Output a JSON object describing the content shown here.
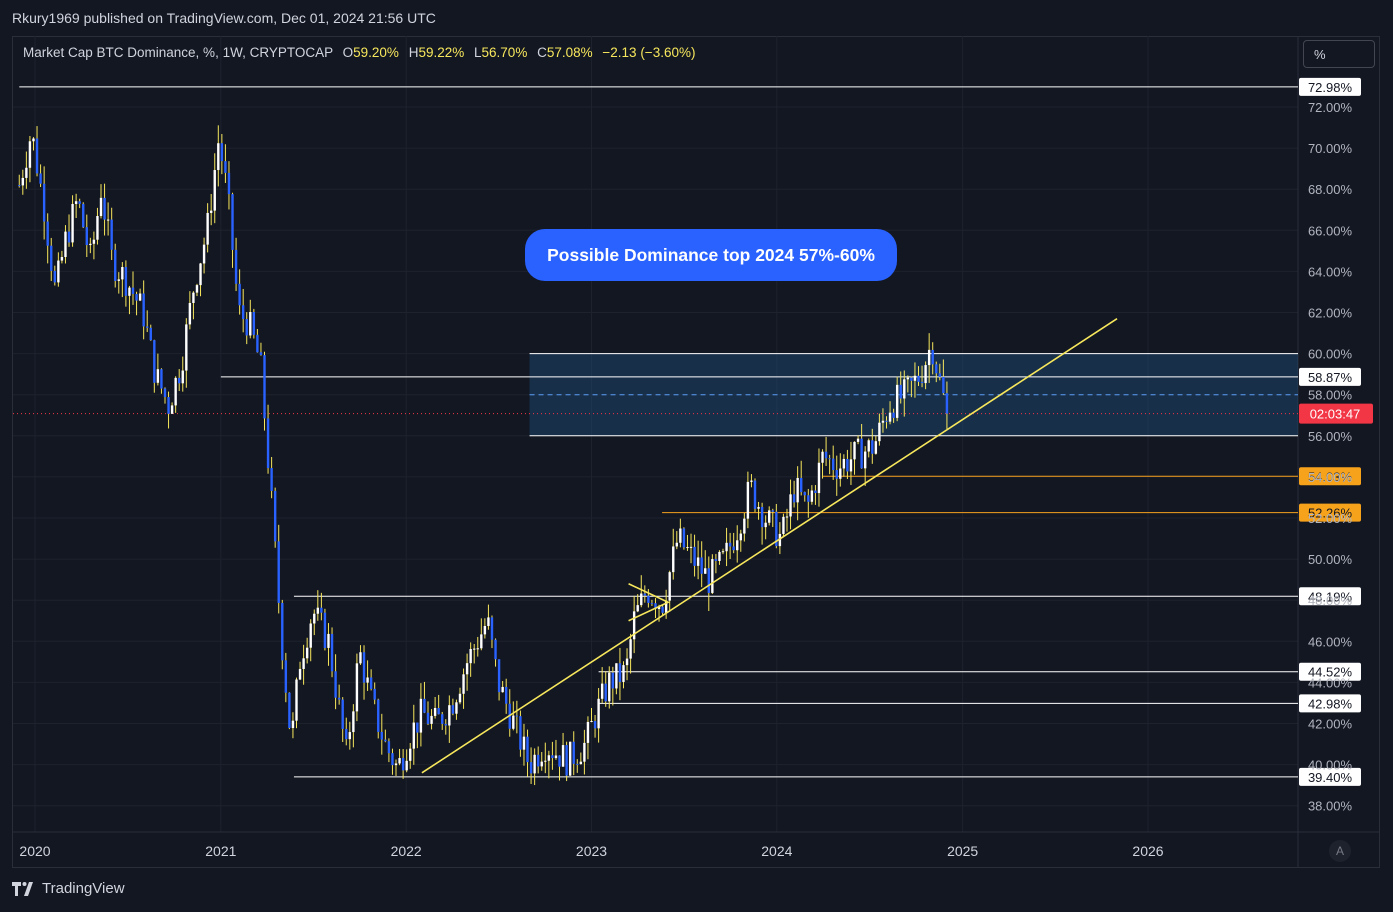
{
  "header": {
    "publisher": "Rkury1969 published on TradingView.com, Dec 01, 2024 21:56 UTC"
  },
  "legend": {
    "symbol": "Market Cap BTC Dominance, %, 1W, CRYPTOCAP",
    "o_label": "O",
    "o": "59.20%",
    "h_label": "H",
    "h": "59.22%",
    "l_label": "L",
    "l": "56.70%",
    "c_label": "C",
    "c": "57.08%",
    "change": "−2.13 (−3.60%)"
  },
  "scale_button": "%",
  "auto_button": "A",
  "brand": "TradingView",
  "annotation": "Possible Dominance top 2024 57%-60%",
  "countdown": "02:03:47",
  "colors": {
    "background": "#131722",
    "up": "#ffffff",
    "down": "#2962ff",
    "wick": "#f7e75c",
    "trendline": "#f7e75c",
    "zone": "#1f4e79",
    "annotation_bg": "#2962ff",
    "orange": "#f7a21b",
    "countdown_bg": "#f23645"
  },
  "chart_data": {
    "type": "candlestick",
    "title": "Market Cap BTC Dominance, %, 1W, CRYPTOCAP",
    "ylabel": "%",
    "ylim": [
      37.0,
      74.0
    ],
    "x_range": [
      "2019-12-01",
      "2026-12-31"
    ],
    "x_ticks": [
      "2020",
      "2021",
      "2022",
      "2023",
      "2024",
      "2025",
      "2026"
    ],
    "y_ticks": [
      "38.00%",
      "40.00%",
      "42.00%",
      "44.00%",
      "46.00%",
      "48.00%",
      "50.00%",
      "52.00%",
      "54.00%",
      "56.00%",
      "58.00%",
      "60.00%",
      "62.00%",
      "64.00%",
      "66.00%",
      "68.00%",
      "70.00%",
      "72.00%"
    ],
    "horizontal_levels": [
      {
        "value": 72.98,
        "label": "72.98%",
        "color": "#ffffff",
        "from": "2019-12-01"
      },
      {
        "value": 58.87,
        "label": "58.87%",
        "color": "#ffffff",
        "from": "2021-01-01"
      },
      {
        "value": 54.03,
        "label": "54.03%",
        "color": "#f7a21b",
        "from": "2024-04-01"
      },
      {
        "value": 52.26,
        "label": "52.26%",
        "color": "#f7a21b",
        "from": "2023-05-20"
      },
      {
        "value": 48.19,
        "label": "48.19%",
        "color": "#ffffff",
        "from": "2021-05-25"
      },
      {
        "value": 44.52,
        "label": "44.52%",
        "color": "#ffffff",
        "from": "2023-01-15"
      },
      {
        "value": 42.98,
        "label": "42.98%",
        "color": "#ffffff",
        "from": "2023-01-15"
      },
      {
        "value": 39.4,
        "label": "39.40%",
        "color": "#ffffff",
        "from": "2021-05-25"
      }
    ],
    "zone": {
      "from": "2022-09-01",
      "to": "2026-12-31",
      "low": 56.0,
      "high": 60.0
    },
    "zone_mid": 58.0,
    "current_price": 57.08,
    "trendline": {
      "x1": "2022-02-01",
      "y1": 39.6,
      "x2": "2025-11-01",
      "y2": 61.7
    },
    "triangle": {
      "x1": "2023-03-15",
      "x2": "2023-06-01",
      "top": 48.8,
      "bottom": 47.0
    },
    "path": [
      [
        "2019-12-01",
        68.2
      ],
      [
        "2019-12-25",
        70.8
      ],
      [
        "2020-01-20",
        67.0
      ],
      [
        "2020-02-10",
        63.0
      ],
      [
        "2020-03-01",
        65.5
      ],
      [
        "2020-03-25",
        67.5
      ],
      [
        "2020-04-20",
        64.5
      ],
      [
        "2020-05-10",
        68.0
      ],
      [
        "2020-06-01",
        64.5
      ],
      [
        "2020-07-01",
        63.5
      ],
      [
        "2020-08-01",
        62.0
      ],
      [
        "2020-08-25",
        59.0
      ],
      [
        "2020-09-20",
        57.5
      ],
      [
        "2020-10-15",
        59.5
      ],
      [
        "2020-11-10",
        63.5
      ],
      [
        "2020-12-05",
        66.0
      ],
      [
        "2020-12-28",
        70.5
      ],
      [
        "2021-01-15",
        67.5
      ],
      [
        "2021-02-05",
        62.0
      ],
      [
        "2021-02-25",
        61.5
      ],
      [
        "2021-03-20",
        59.5
      ],
      [
        "2021-04-10",
        53.0
      ],
      [
        "2021-05-01",
        46.0
      ],
      [
        "2021-05-20",
        41.0
      ],
      [
        "2021-06-05",
        45.0
      ],
      [
        "2021-07-01",
        47.5
      ],
      [
        "2021-08-01",
        46.0
      ],
      [
        "2021-09-05",
        40.5
      ],
      [
        "2021-10-01",
        45.5
      ],
      [
        "2021-10-25",
        43.0
      ],
      [
        "2021-11-20",
        41.0
      ],
      [
        "2021-12-15",
        39.8
      ],
      [
        "2022-01-10",
        41.5
      ],
      [
        "2022-02-01",
        42.5
      ],
      [
        "2022-03-01",
        42.0
      ],
      [
        "2022-04-01",
        43.0
      ],
      [
        "2022-05-01",
        45.0
      ],
      [
        "2022-06-10",
        47.0
      ],
      [
        "2022-07-01",
        44.0
      ],
      [
        "2022-08-01",
        42.0
      ],
      [
        "2022-09-01",
        40.0
      ],
      [
        "2022-10-01",
        41.0
      ],
      [
        "2022-11-15",
        40.2
      ],
      [
        "2022-12-20",
        41.0
      ],
      [
        "2023-01-10",
        42.5
      ],
      [
        "2023-02-05",
        44.0
      ],
      [
        "2023-03-10",
        44.5
      ],
      [
        "2023-03-25",
        47.0
      ],
      [
        "2023-04-20",
        48.5
      ],
      [
        "2023-05-20",
        47.8
      ],
      [
        "2023-06-20",
        51.0
      ],
      [
        "2023-07-20",
        50.0
      ],
      [
        "2023-08-20",
        49.0
      ],
      [
        "2023-09-20",
        50.0
      ],
      [
        "2023-10-15",
        51.5
      ],
      [
        "2023-11-10",
        53.5
      ],
      [
        "2023-12-10",
        52.0
      ],
      [
        "2024-01-10",
        51.0
      ],
      [
        "2024-02-05",
        53.5
      ],
      [
        "2024-03-01",
        52.5
      ],
      [
        "2024-04-01",
        55.0
      ],
      [
        "2024-05-01",
        54.5
      ],
      [
        "2024-06-01",
        55.0
      ],
      [
        "2024-07-10",
        55.5
      ],
      [
        "2024-08-10",
        57.5
      ],
      [
        "2024-09-10",
        58.0
      ],
      [
        "2024-10-10",
        59.0
      ],
      [
        "2024-11-01",
        60.5
      ],
      [
        "2024-11-18",
        58.5
      ],
      [
        "2024-12-01",
        57.08
      ]
    ]
  }
}
